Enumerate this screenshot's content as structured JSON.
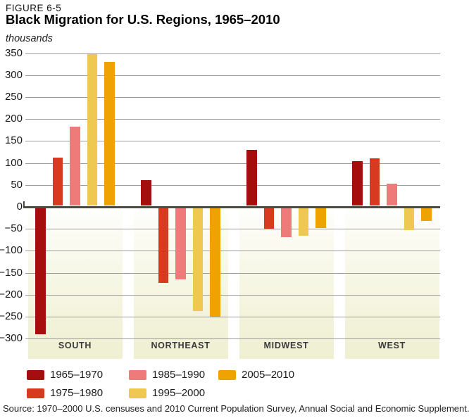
{
  "header": {
    "figure_label": "FIGURE 6-5",
    "title": "Black Migration for U.S. Regions, 1965–2010",
    "units_label": "thousands"
  },
  "source": {
    "text": "Source: 1970–2000 U.S. censuses and 2010 Current Population Survey, Annual Social and Economic Supplement."
  },
  "colors": {
    "grid_line": "#9c9c9c",
    "zero_line": "#4b4b44",
    "band_gradient_top": "#fefefc",
    "band_gradient_bottom": "#efefd2",
    "axis_text": "#1a1a1a",
    "region_label_text": "#3b3b3b"
  },
  "chart_data": {
    "type": "bar",
    "title": "Black Migration for U.S. Regions, 1965–2010",
    "ylabel": "thousands",
    "xlabel": "",
    "ylim": [
      -300,
      350
    ],
    "ytick_step": 50,
    "grid": true,
    "legend_position": "bottom-left",
    "categories": [
      "SOUTH",
      "NORTHEAST",
      "MIDWEST",
      "WEST"
    ],
    "series": [
      {
        "name": "1965–1970",
        "color": "#a60d0d",
        "values": [
          -287,
          58,
          127,
          102
        ]
      },
      {
        "name": "1975–1980",
        "color": "#d83a20",
        "values": [
          109,
          -170,
          -48,
          108
        ]
      },
      {
        "name": "1985–1990",
        "color": "#ef7a7a",
        "values": [
          181,
          -162,
          -66,
          50
        ]
      },
      {
        "name": "1995–2000",
        "color": "#eec850",
        "values": [
          346,
          -234,
          -63,
          -50
        ]
      },
      {
        "name": "2005–2010",
        "color": "#efa302",
        "values": [
          328,
          -247,
          -46,
          -30
        ]
      }
    ]
  }
}
